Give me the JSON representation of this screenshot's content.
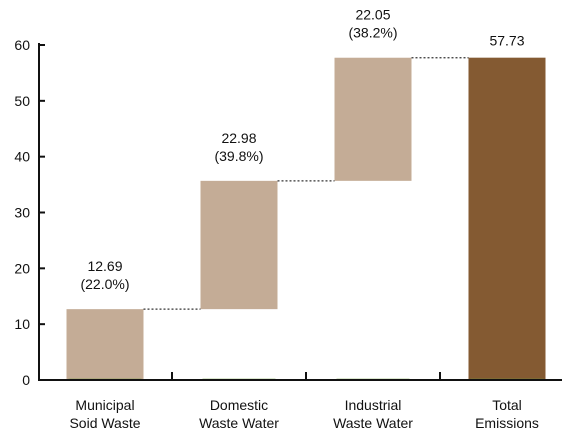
{
  "chart_data": {
    "type": "bar",
    "subtype": "waterfall",
    "categories": [
      [
        "Municipal",
        "Soid Waste"
      ],
      [
        "Domestic",
        "Waste Water"
      ],
      [
        "Industrial",
        "Waste Water"
      ],
      [
        "Total",
        "Emissions"
      ]
    ],
    "values": [
      12.69,
      22.98,
      22.05,
      57.73
    ],
    "value_labels": [
      "12.69",
      "22.98",
      "22.05",
      "57.73"
    ],
    "share_labels": [
      "(22.0%)",
      "(39.8%)",
      "(38.2%)",
      null
    ],
    "bar_kind": [
      "step",
      "step",
      "step",
      "total"
    ],
    "ylim": [
      0,
      60
    ],
    "yticks": [
      0,
      10,
      20,
      30,
      40,
      50,
      60
    ],
    "ytick_labels": [
      "0",
      "10",
      "20",
      "30",
      "40",
      "50",
      "60"
    ],
    "connectors": "dotted",
    "grid": false,
    "title": "",
    "xlabel": "",
    "ylabel": "",
    "colors": {
      "step": "#c4ac96",
      "total": "#845a32",
      "axis": "#111111",
      "baseline_accent": "#6f9a3a"
    }
  }
}
